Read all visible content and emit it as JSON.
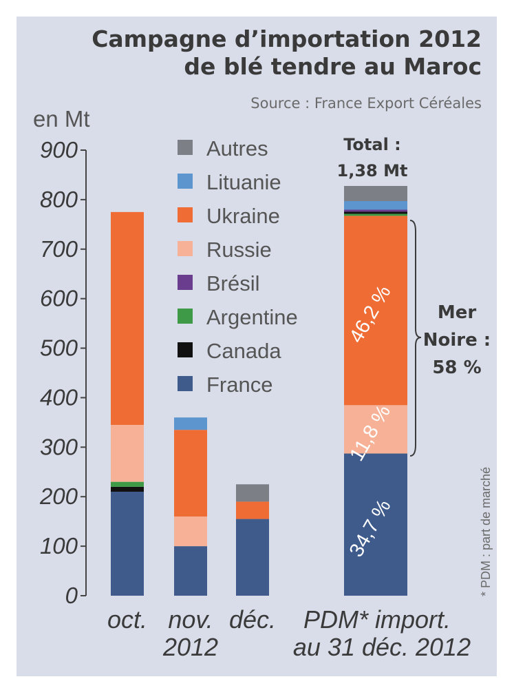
{
  "title_line1": "Campagne d’importation 2012",
  "title_line2": "de blé tendre au Maroc",
  "source": "Source : France Export Céréales",
  "unit": "en Mt",
  "colors": {
    "Autres": "#7c7f86",
    "Lituanie": "#5d95cf",
    "Ukraine": "#ef6c35",
    "Russie": "#f6b196",
    "Brésil": "#6b3d8f",
    "Argentine": "#3f9a48",
    "Canada": "#111111",
    "France": "#3e5b8c"
  },
  "chart_data": {
    "type": "bar",
    "stacked": true,
    "ylim": [
      0,
      900
    ],
    "yticks": [
      "0",
      "100",
      "200",
      "300",
      "400",
      "500",
      "600",
      "700",
      "800",
      "900"
    ],
    "legend": [
      "Autres",
      "Lituanie",
      "Ukraine",
      "Russie",
      "Brésil",
      "Argentine",
      "Canada",
      "France"
    ],
    "categories": [
      {
        "line1": "oct.",
        "line2": ""
      },
      {
        "line1": "nov.",
        "line2": "2012"
      },
      {
        "line1": "déc.",
        "line2": ""
      }
    ],
    "series": [
      {
        "name": "France",
        "values": [
          210,
          100,
          155
        ]
      },
      {
        "name": "Canada",
        "values": [
          10,
          0,
          0
        ]
      },
      {
        "name": "Argentine",
        "values": [
          10,
          0,
          0
        ]
      },
      {
        "name": "Brésil",
        "values": [
          0,
          0,
          0
        ]
      },
      {
        "name": "Russie",
        "values": [
          115,
          60,
          0
        ]
      },
      {
        "name": "Ukraine",
        "values": [
          430,
          175,
          35
        ]
      },
      {
        "name": "Lituanie",
        "values": [
          0,
          25,
          0
        ]
      },
      {
        "name": "Autres",
        "values": [
          0,
          0,
          35
        ]
      }
    ],
    "share_bar": {
      "label_line1": "PDM* import.",
      "label_line2": "au 31 déc. 2012",
      "total_line1": "Total :",
      "total_line2": "1,38 Mt",
      "segments": [
        {
          "name": "France",
          "percent": 34.7,
          "label": "34,7 %"
        },
        {
          "name": "Russie",
          "percent": 11.8,
          "label": "11,8 %"
        },
        {
          "name": "Ukraine",
          "percent": 46.2,
          "label": "46,2 %"
        },
        {
          "name": "Argentine",
          "percent": 0.5,
          "label": ""
        },
        {
          "name": "Canada",
          "percent": 0.5,
          "label": ""
        },
        {
          "name": "Brésil",
          "percent": 0.5,
          "label": ""
        },
        {
          "name": "Lituanie",
          "percent": 2.1,
          "label": ""
        },
        {
          "name": "Autres",
          "percent": 3.7,
          "label": ""
        }
      ],
      "bracket_line1": "Mer",
      "bracket_line2": "Noire :",
      "bracket_line3": "58 %"
    },
    "footnote": "* PDM : part de marché"
  }
}
